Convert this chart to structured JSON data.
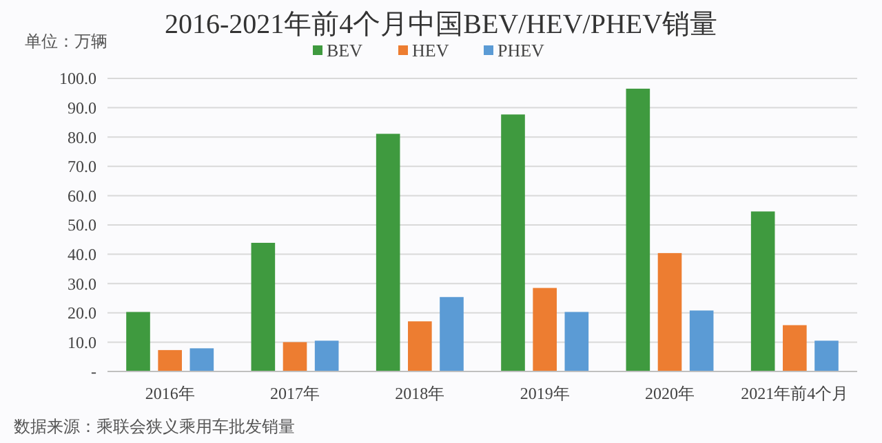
{
  "chart_data": {
    "type": "bar",
    "title": "2016-2021年前4个月中国BEV/HEV/PHEV销量",
    "ylabel": "单位：万辆",
    "categories": [
      "2016年",
      "2017年",
      "2018年",
      "2019年",
      "2020年",
      "2021年前4个月"
    ],
    "series": [
      {
        "name": "BEV",
        "color": "#3f9a3f",
        "values": [
          20.3,
          43.9,
          81.1,
          87.7,
          96.5,
          54.6
        ]
      },
      {
        "name": "HEV",
        "color": "#ed7d31",
        "values": [
          7.3,
          10.0,
          17.1,
          28.5,
          40.4,
          15.8
        ]
      },
      {
        "name": "PHEV",
        "color": "#5b9bd5",
        "values": [
          7.9,
          10.5,
          25.4,
          20.3,
          20.8,
          10.5
        ]
      }
    ],
    "ylim": [
      0,
      100
    ],
    "yticks": [
      {
        "value": 0,
        "label": "-"
      },
      {
        "value": 10,
        "label": "10.0"
      },
      {
        "value": 20,
        "label": "20.0"
      },
      {
        "value": 30,
        "label": "30.0"
      },
      {
        "value": 40,
        "label": "40.0"
      },
      {
        "value": 50,
        "label": "50.0"
      },
      {
        "value": 60,
        "label": "60.0"
      },
      {
        "value": 70,
        "label": "70.0"
      },
      {
        "value": 80,
        "label": "80.0"
      },
      {
        "value": 90,
        "label": "90.0"
      },
      {
        "value": 100,
        "label": "100.0"
      }
    ],
    "grid": "y",
    "legend": "top",
    "annotations": [
      "数据来源：乘联会狭义乘用车批发销量"
    ]
  }
}
